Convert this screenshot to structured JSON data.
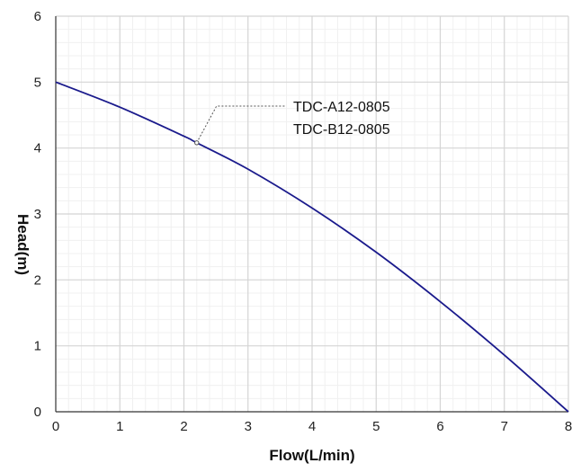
{
  "chart_data": {
    "type": "line",
    "title": "",
    "xlabel": "Flow(L/min)",
    "ylabel": "Head(m)",
    "xlim": [
      0,
      8
    ],
    "ylim": [
      0,
      6
    ],
    "x_ticks": [
      "0",
      "1",
      "2",
      "3",
      "4",
      "5",
      "6",
      "7",
      "8"
    ],
    "y_ticks": [
      "0",
      "1",
      "2",
      "3",
      "4",
      "5",
      "6"
    ],
    "grid": true,
    "series": [
      {
        "name": "",
        "color": "#1a1a8c",
        "x": [
          0,
          1,
          2,
          2.2,
          3,
          4,
          5,
          6,
          7,
          8
        ],
        "y": [
          5.0,
          4.62,
          4.18,
          4.08,
          3.68,
          3.09,
          2.42,
          1.67,
          0.86,
          0.0
        ]
      }
    ],
    "annotation": {
      "lines": [
        "TDC-A12-0805",
        "TDC-B12-0805"
      ],
      "point": [
        2.2,
        4.08
      ]
    }
  }
}
